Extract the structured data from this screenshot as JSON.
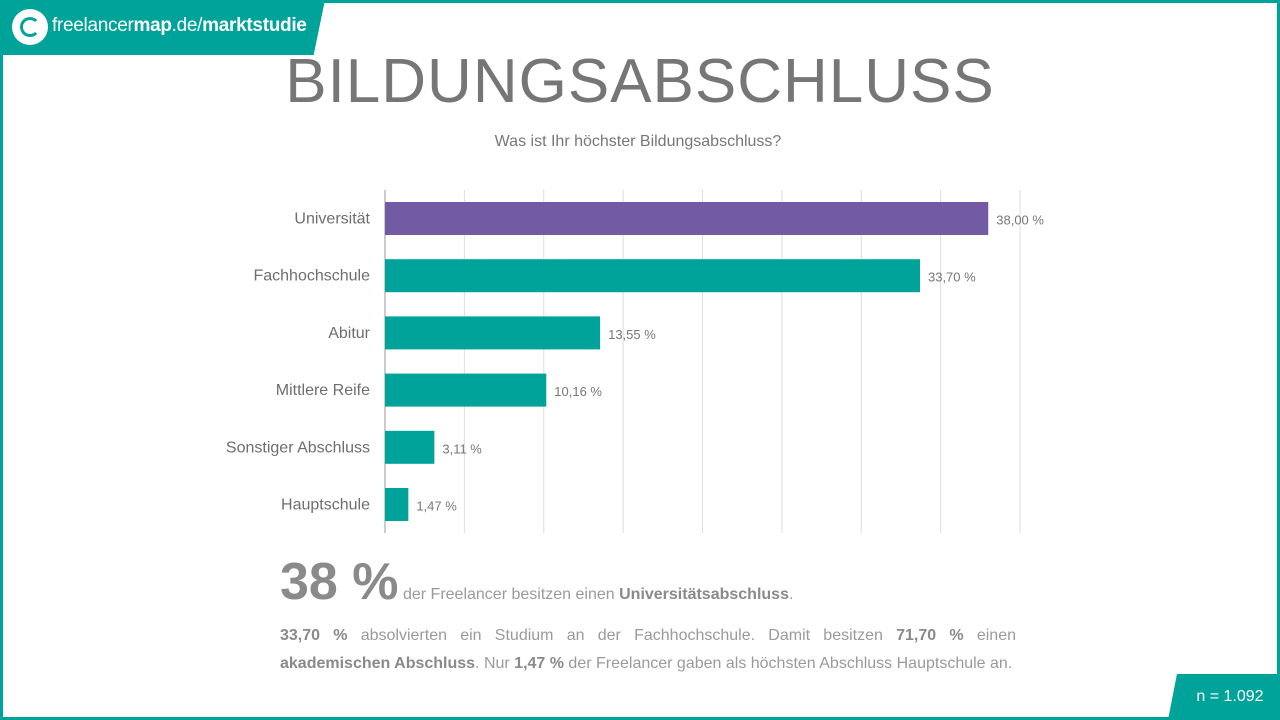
{
  "brand": {
    "prefix": "freelancer",
    "bold": "map",
    "domain": ".de/",
    "section": "marktstudie"
  },
  "colors": {
    "teal": "#00a39a",
    "purple": "#735ba3"
  },
  "chart_data": {
    "type": "bar",
    "orientation": "horizontal",
    "title": "BILDUNGSABSCHLUSS",
    "subtitle": "Was ist Ihr höchster Bildungsabschluss?",
    "categories": [
      "Universität",
      "Fachhochschule",
      "Abitur",
      "Mittlere Reife",
      "Sonstiger Abschluss",
      "Hauptschule"
    ],
    "values": [
      38.0,
      33.7,
      13.55,
      10.16,
      3.11,
      1.47
    ],
    "value_labels": [
      "38,00 %",
      "33,70 %",
      "13,55 %",
      "10,16 %",
      "3,11 %",
      "1,47 %"
    ],
    "highlight_index": 0,
    "xlim": [
      0,
      40
    ],
    "grid": true
  },
  "summary": {
    "big": "38 %",
    "line1_text": " der Freelancer besitzen einen ",
    "line1_bold": "Universitätsabschluss",
    "line1_end": ".",
    "p1_bold": "33,70 %",
    "p1_text1": " absolvierten ein Studium an der Fachhochschule. Damit besitzen ",
    "p1_bold2": "71,70 %",
    "p1_text2": " einen ",
    "p1_bold3": "akademischen Abschluss",
    "p1_text3": ". Nur ",
    "p1_bold4": "1,47 %",
    "p1_text4": " der Freelancer gaben als höchsten Abschluss Hauptschule an."
  },
  "sample": "n = 1.092"
}
